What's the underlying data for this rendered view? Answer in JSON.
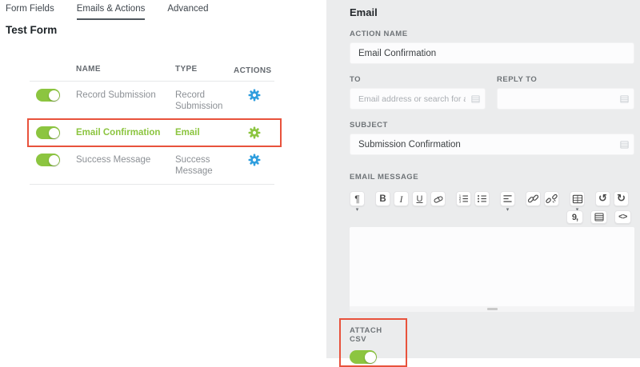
{
  "tabs": [
    {
      "label": "Form Fields",
      "active": false
    },
    {
      "label": "Emails & Actions",
      "active": true
    },
    {
      "label": "Advanced",
      "active": false
    }
  ],
  "page_title": "Test Form",
  "table": {
    "headers": {
      "name": "NAME",
      "type": "TYPE",
      "actions": "ACTIONS"
    },
    "rows": [
      {
        "name": "Record Submission",
        "type": "Record Submission",
        "enabled": true,
        "highlighted": false,
        "gear_color": "blue"
      },
      {
        "name": "Email Confirmation",
        "type": "Email",
        "enabled": true,
        "highlighted": true,
        "gear_color": "green"
      },
      {
        "name": "Success Message",
        "type": "Success Message",
        "enabled": true,
        "highlighted": false,
        "gear_color": "blue"
      }
    ]
  },
  "panel": {
    "title": "Email",
    "action_name": {
      "label": "ACTION NAME",
      "value": "Email Confirmation"
    },
    "to": {
      "label": "TO",
      "placeholder": "Email address or search for a f"
    },
    "reply_to": {
      "label": "REPLY TO",
      "value": ""
    },
    "subject": {
      "label": "SUBJECT",
      "value": "Submission Confirmation"
    },
    "email_message": {
      "label": "EMAIL MESSAGE"
    },
    "attach_csv": {
      "label": "ATTACH CSV",
      "enabled": true
    }
  },
  "editor_toolbar": {
    "row1": [
      {
        "name": "paragraph-style",
        "glyph": "¶",
        "glyph_class": "g-para",
        "dropdown": true
      },
      {
        "name": "bold",
        "glyph": "B",
        "glyph_class": "g-bold",
        "group_start": true
      },
      {
        "name": "italic",
        "glyph": "I",
        "glyph_class": "g-italic"
      },
      {
        "name": "underline",
        "glyph": "U",
        "glyph_class": "g-underline"
      },
      {
        "name": "clear-format",
        "icon": "eraser"
      },
      {
        "name": "ordered-list",
        "icon": "ol",
        "group_start": true
      },
      {
        "name": "unordered-list",
        "icon": "ul"
      },
      {
        "name": "align",
        "icon": "align",
        "dropdown": true,
        "group_start": true
      },
      {
        "name": "link",
        "icon": "link",
        "group_start": true
      },
      {
        "name": "unlink",
        "icon": "unlink"
      },
      {
        "name": "table",
        "icon": "table",
        "dropdown": true,
        "group_start": true
      },
      {
        "name": "undo",
        "glyph": "↺",
        "glyph_class": "g-undo",
        "group_start": true
      },
      {
        "name": "redo",
        "glyph": "↻",
        "glyph_class": "g-redo"
      }
    ],
    "row2": [
      {
        "name": "merge-tags",
        "glyph": "9,",
        "glyph_class": "g-merge"
      },
      {
        "name": "row-properties",
        "icon": "rows"
      },
      {
        "name": "code-view",
        "glyph": "<>",
        "glyph_class": "g-code"
      }
    ]
  },
  "colors": {
    "toggle_on": "#8cc540",
    "gear_blue": "#2f9ede",
    "gear_green": "#8cc540",
    "highlight_red": "#e8523c",
    "panel_bg": "#ebeced",
    "active_row_text": "#8cc540"
  }
}
